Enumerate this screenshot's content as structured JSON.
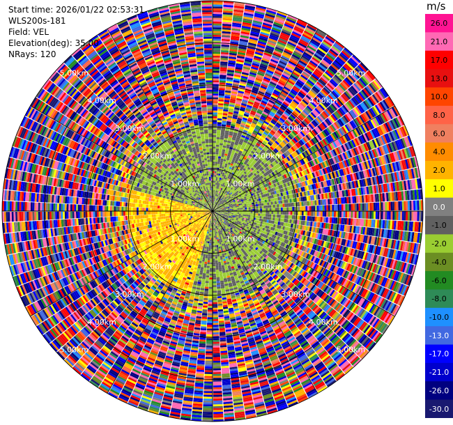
{
  "info": {
    "start_time": "Start time: 2026/01/22 02:53:31",
    "instrument": "WLS200s-181",
    "field": "Field: VEL",
    "elevation": "Elevation(deg): 35.00",
    "nrays": "NRays: 120"
  },
  "chart_data": {
    "type": "heatmap",
    "projection": "polar-ppi",
    "field": "VEL",
    "elevation_deg": 35.0,
    "n_rays": 120,
    "unit": "m/s",
    "max_range_km": 5.0,
    "range_rings_km": [
      1.0,
      2.0,
      3.0,
      4.0,
      5.0
    ],
    "ring_label": "km",
    "colorbar": {
      "unit": "m/s",
      "ticks": [
        "26.0",
        "21.0",
        "17.0",
        "13.0",
        "10.0",
        "8.0",
        "6.0",
        "4.0",
        "2.0",
        "1.0",
        "0.0",
        "-1.0",
        "-2.0",
        "-4.0",
        "-6.0",
        "-8.0",
        "-10.0",
        "-13.0",
        "-17.0",
        "-21.0",
        "-26.0",
        "-30.0"
      ],
      "colors": [
        "#ff1493",
        "#ff69b4",
        "#ff0000",
        "#e81010",
        "#ff4500",
        "#ff6347",
        "#f08060",
        "#ff8c00",
        "#ffb300",
        "#ffff00",
        "#808080",
        "#606060",
        "#9acd32",
        "#6b8e23",
        "#228b22",
        "#2e8b57",
        "#1e90ff",
        "#4169e1",
        "#0000ff",
        "#0000cd",
        "#000080",
        "#191970"
      ]
    },
    "wind_pattern": {
      "inner_range_km": 2.0,
      "inner_positive_sector_deg": [
        195,
        285
      ],
      "inner_positive_values": [
        1.0,
        4.0
      ],
      "inner_negative_values": [
        -2.0,
        0.0
      ],
      "outer_noise_range_km": [
        2.5,
        5.0
      ],
      "noise_min": -30.0,
      "noise_max": 26.0
    }
  }
}
